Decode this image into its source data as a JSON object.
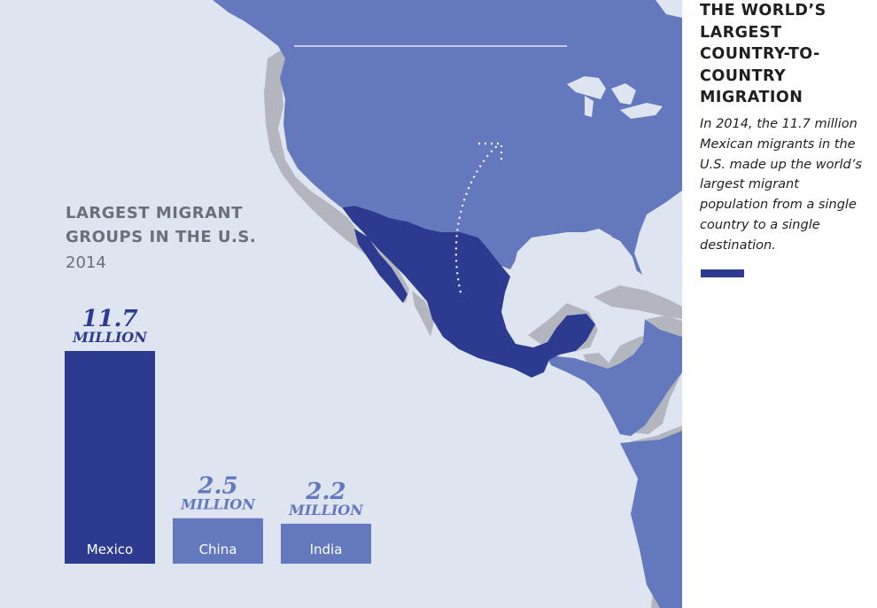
{
  "sidebar": {
    "title": "THE WORLD’S LARGEST COUNTRY-TO-COUNTRY MIGRATION",
    "body": "In 2014, the 11.7 million Mexican migrants in the U.S. made up the world’s largest migrant population from a single country to a single destination."
  },
  "colors": {
    "ocean": "#dfe4f1",
    "us_land": "#6479bd",
    "mexico": "#2c3b8f",
    "central_america": "#6479bd",
    "other_land": "#b3b6bf",
    "mexico_bar": "#2c3b8f",
    "other_bar": "#6479bd"
  },
  "map": {
    "icons": [
      "north-america-map",
      "migration-arrow"
    ]
  },
  "chart_data": {
    "type": "bar",
    "title": "LARGEST MIGRANT GROUPS IN THE U.S.",
    "subtitle": "2014",
    "categories": [
      "Mexico",
      "China",
      "India"
    ],
    "values": [
      11.7,
      2.5,
      2.2
    ],
    "value_labels": [
      "11.7",
      "2.5",
      "2.2"
    ],
    "unit_label": "MILLION",
    "ylim": [
      0,
      11.7
    ],
    "grid": false
  }
}
